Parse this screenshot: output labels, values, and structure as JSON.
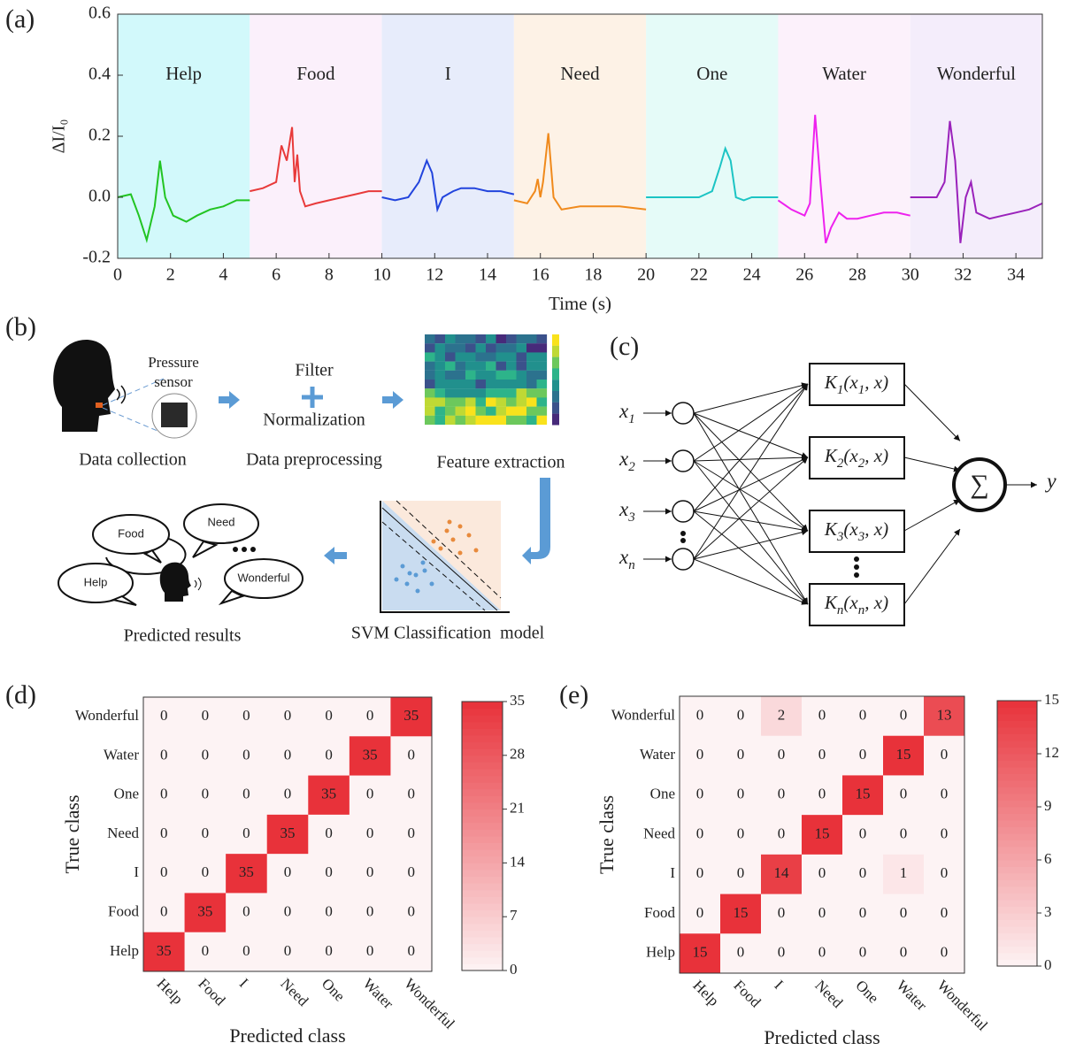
{
  "panel_labels": [
    "(a)",
    "(b)",
    "(c)",
    "(d)",
    "(e)"
  ],
  "signal_chart": {
    "type": "line",
    "ylabel": "ΔI/I₀",
    "xlabel": "Time (s)",
    "xlim": [
      0,
      35
    ],
    "ylim": [
      -0.2,
      0.6
    ],
    "xticks": [
      0,
      2,
      4,
      6,
      8,
      10,
      12,
      14,
      16,
      18,
      20,
      22,
      24,
      26,
      28,
      30,
      32,
      34
    ],
    "yticks": [
      {
        "value": -0.2,
        "label": "-0.2"
      },
      {
        "value": 0,
        "label": "0.0"
      },
      0.2,
      0.4,
      0.6
    ],
    "series": [
      {
        "name": "Help",
        "color": "#22c422",
        "band": [
          0,
          5
        ],
        "background": "#d2f9fb",
        "x": [
          0,
          0.5,
          0.8,
          1.1,
          1.4,
          1.6,
          1.8,
          2.1,
          2.6,
          3,
          3.5,
          4,
          4.5,
          5
        ],
        "values": [
          0,
          0.01,
          -0.06,
          -0.14,
          -0.03,
          0.12,
          0,
          -0.06,
          -0.08,
          -0.06,
          -0.04,
          -0.03,
          -0.01,
          -0.01
        ]
      },
      {
        "name": "Food",
        "color": "#e83a3a",
        "band": [
          5,
          10
        ],
        "background": "#fbf0fb",
        "x": [
          5,
          5.5,
          6,
          6.2,
          6.4,
          6.6,
          6.7,
          6.8,
          6.9,
          7.1,
          7.5,
          8,
          8.5,
          9,
          9.5,
          10
        ],
        "values": [
          0.02,
          0.03,
          0.05,
          0.17,
          0.12,
          0.23,
          0.05,
          0.14,
          0.02,
          -0.03,
          -0.02,
          -0.01,
          0,
          0.01,
          0.02,
          0.02
        ]
      },
      {
        "name": "I",
        "color": "#2244dd",
        "band": [
          10,
          15
        ],
        "background": "#e7ecfb",
        "x": [
          10,
          10.5,
          11,
          11.4,
          11.7,
          11.9,
          12.1,
          12.3,
          12.7,
          13,
          13.5,
          14,
          14.5,
          15
        ],
        "values": [
          0,
          -0.01,
          0,
          0.05,
          0.12,
          0.08,
          -0.04,
          0,
          0.02,
          0.03,
          0.03,
          0.02,
          0.02,
          0.01
        ]
      },
      {
        "name": "Need",
        "color": "#f08a1c",
        "band": [
          15,
          20
        ],
        "background": "#fdf2e6",
        "x": [
          15,
          15.5,
          15.8,
          15.9,
          16,
          16.1,
          16.3,
          16.5,
          16.8,
          17.5,
          18,
          19,
          20
        ],
        "values": [
          -0.01,
          -0.02,
          0.02,
          0.06,
          0,
          0.05,
          0.21,
          0,
          -0.04,
          -0.03,
          -0.03,
          -0.03,
          -0.04
        ]
      },
      {
        "name": "One",
        "color": "#1cc4c4",
        "band": [
          20,
          25
        ],
        "background": "#e5fbf8",
        "x": [
          20,
          21,
          22,
          22.5,
          22.8,
          23,
          23.2,
          23.4,
          23.7,
          24,
          24.5,
          25
        ],
        "values": [
          0,
          0,
          0,
          0.02,
          0.1,
          0.16,
          0.12,
          0,
          -0.01,
          0,
          0,
          0
        ]
      },
      {
        "name": "Water",
        "color": "#ee22ee",
        "band": [
          25,
          30
        ],
        "background": "#fcf1fb",
        "x": [
          25,
          25.5,
          26,
          26.2,
          26.4,
          26.6,
          26.8,
          27,
          27.3,
          27.6,
          28,
          28.5,
          29,
          29.5,
          30
        ],
        "values": [
          -0.01,
          -0.04,
          -0.06,
          -0.02,
          0.27,
          0.05,
          -0.15,
          -0.1,
          -0.05,
          -0.07,
          -0.07,
          -0.06,
          -0.05,
          -0.05,
          -0.06
        ]
      },
      {
        "name": "Wonderful",
        "color": "#9a22bb",
        "band": [
          30,
          35
        ],
        "background": "#f4edfb",
        "x": [
          30,
          30.5,
          31,
          31.3,
          31.5,
          31.7,
          31.9,
          32.1,
          32.3,
          32.5,
          33,
          33.5,
          34,
          34.5,
          35
        ],
        "values": [
          0,
          0,
          0,
          0.05,
          0.25,
          0.12,
          -0.15,
          0,
          0.05,
          -0.05,
          -0.07,
          -0.06,
          -0.05,
          -0.04,
          -0.02
        ]
      }
    ]
  },
  "pipeline": {
    "sensor_label": [
      "Pressure",
      "sensor"
    ],
    "filter": "Filter",
    "normalization": "Normalization",
    "steps": [
      "Data collection",
      "Data preprocessing",
      "Feature extraction",
      "SVM Classification  model",
      "Predicted results"
    ],
    "bubbles": [
      "Food",
      "Need",
      "Help",
      "Wonderful"
    ]
  },
  "network": {
    "inputs": [
      [
        {
          "text": "x"
        },
        {
          "sub": "1"
        }
      ],
      [
        {
          "text": "x"
        },
        {
          "sub": "2"
        }
      ],
      [
        {
          "text": "x"
        },
        {
          "sub": "3"
        }
      ],
      [
        {
          "text": "x"
        },
        {
          "sub": "n"
        }
      ]
    ],
    "kernels": [
      [
        {
          "text": "K"
        },
        {
          "sub": "1"
        },
        {
          "text": "(x"
        },
        {
          "sub": "1"
        },
        {
          "text": ", x)"
        }
      ],
      [
        {
          "text": "K"
        },
        {
          "sub": "2"
        },
        {
          "text": "(x"
        },
        {
          "sub": "2"
        },
        {
          "text": ", x)"
        }
      ],
      [
        {
          "text": "K"
        },
        {
          "sub": "3"
        },
        {
          "text": "(x"
        },
        {
          "sub": "3"
        },
        {
          "text": ", x)"
        }
      ],
      [
        {
          "text": "K"
        },
        {
          "sub": "n"
        },
        {
          "text": "(x"
        },
        {
          "sub": "n"
        },
        {
          "text": ", x)"
        }
      ]
    ],
    "sum": "∑",
    "output": "y"
  },
  "confusion_d": {
    "type": "heatmap",
    "xlabel": "Predicted class",
    "ylabel": "True class",
    "x_categories": [
      "Help",
      "Food",
      "I",
      "Need",
      "One",
      "Water",
      "Wonderful"
    ],
    "y_categories": [
      "Wonderful",
      "Water",
      "One",
      "Need",
      "I",
      "Food",
      "Help"
    ],
    "matrix": [
      [
        0,
        0,
        0,
        0,
        0,
        0,
        35
      ],
      [
        0,
        0,
        0,
        0,
        0,
        35,
        0
      ],
      [
        0,
        0,
        0,
        0,
        35,
        0,
        0
      ],
      [
        0,
        0,
        0,
        35,
        0,
        0,
        0
      ],
      [
        0,
        0,
        35,
        0,
        0,
        0,
        0
      ],
      [
        0,
        35,
        0,
        0,
        0,
        0,
        0
      ],
      [
        35,
        0,
        0,
        0,
        0,
        0,
        0
      ]
    ],
    "zlim": [
      0,
      35
    ],
    "zticks": [
      0,
      7,
      14,
      21,
      28,
      35
    ]
  },
  "confusion_e": {
    "type": "heatmap",
    "xlabel": "Predicted class",
    "ylabel": "True class",
    "x_categories": [
      "Help",
      "Food",
      "I",
      "Need",
      "One",
      "Water",
      "Wonderful"
    ],
    "y_categories": [
      "Wonderful",
      "Water",
      "One",
      "Need",
      "I",
      "Food",
      "Help"
    ],
    "matrix": [
      [
        0,
        0,
        2,
        0,
        0,
        0,
        13
      ],
      [
        0,
        0,
        0,
        0,
        0,
        15,
        0
      ],
      [
        0,
        0,
        0,
        0,
        15,
        0,
        0
      ],
      [
        0,
        0,
        0,
        15,
        0,
        0,
        0
      ],
      [
        0,
        0,
        14,
        0,
        0,
        1,
        0
      ],
      [
        0,
        15,
        0,
        0,
        0,
        0,
        0
      ],
      [
        15,
        0,
        0,
        0,
        0,
        0,
        0
      ]
    ],
    "zlim": [
      0,
      15
    ],
    "zticks": [
      0,
      3,
      6,
      9,
      12,
      15
    ]
  }
}
